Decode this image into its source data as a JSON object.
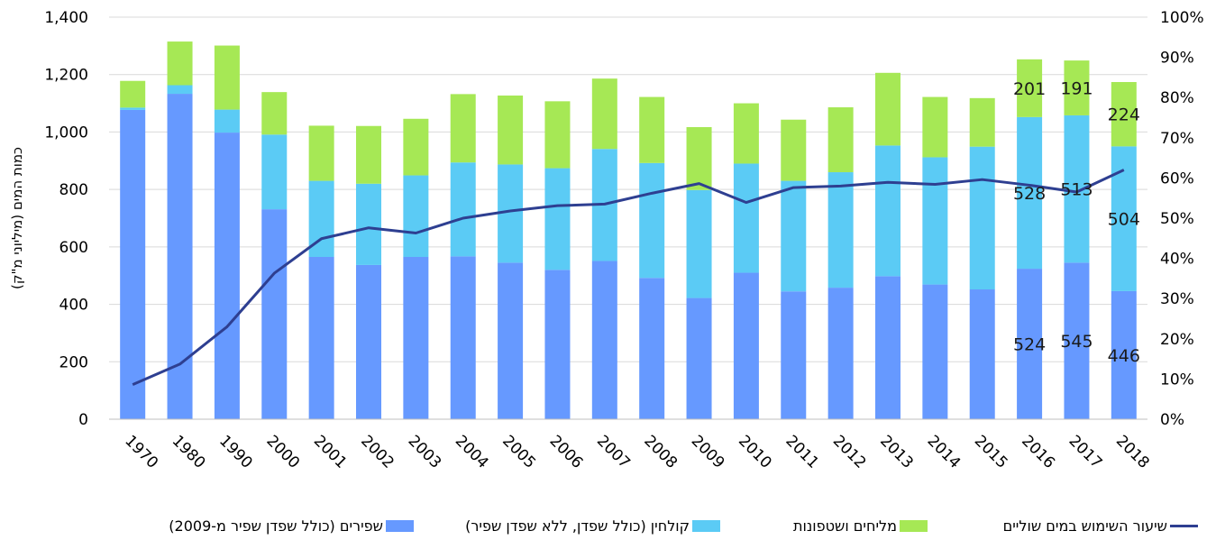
{
  "chart_data": {
    "type": "bar",
    "stacked": true,
    "categories": [
      "1970",
      "1980",
      "1990",
      "2000",
      "2001",
      "2002",
      "2003",
      "2004",
      "2005",
      "2006",
      "2007",
      "2008",
      "2009",
      "2010",
      "2011",
      "2012",
      "2013",
      "2014",
      "2015",
      "2016",
      "2017",
      "2018"
    ],
    "series": [
      {
        "name": "שפירים (כולל שפדן שפיר מ-2009)",
        "color": "#6699ff",
        "values": [
          1077,
          1133,
          998,
          731,
          565,
          537,
          565,
          567,
          545,
          520,
          551,
          492,
          422,
          510,
          445,
          458,
          498,
          469,
          452,
          524,
          545,
          446
        ]
      },
      {
        "name": "קולחין (כולל שפדן, ללא שפדן שפיר)",
        "color": "#5bcbf5",
        "values": [
          8,
          30,
          80,
          260,
          265,
          283,
          284,
          327,
          342,
          354,
          390,
          400,
          376,
          380,
          385,
          402,
          455,
          443,
          497,
          528,
          513,
          504
        ]
      },
      {
        "name": "מליחים ושטפונות",
        "color": "#a6e855",
        "values": [
          93,
          152,
          223,
          148,
          192,
          201,
          197,
          238,
          240,
          233,
          245,
          230,
          219,
          210,
          213,
          226,
          253,
          210,
          169,
          201,
          191,
          224
        ]
      }
    ],
    "line_series": {
      "name": "שיעור השימוש במים שוליים",
      "color": "#2e3f91",
      "axis": "right",
      "values": [
        8.6,
        13.7,
        23.0,
        36.3,
        44.9,
        47.6,
        46.3,
        50.0,
        51.8,
        53.1,
        53.5,
        56.2,
        58.6,
        53.9,
        57.6,
        58.0,
        58.9,
        58.4,
        59.6,
        58.2,
        56.5,
        62.0
      ]
    },
    "data_labels": {
      "categories": [
        "2016",
        "2017",
        "2018"
      ],
      "series1": [
        "524",
        "545",
        "446"
      ],
      "series2": [
        "528",
        "513",
        "504"
      ],
      "series3": [
        "201",
        "191",
        "224"
      ]
    },
    "ylabel": "כמות המים (מיליוני מ\"ק)",
    "ylim": [
      0,
      1400
    ],
    "y_ticks": [
      "0",
      "200",
      "400",
      "600",
      "800",
      "1,000",
      "1,200",
      "1,400"
    ],
    "y2lim": [
      0,
      100
    ],
    "y2_ticks": [
      "0%",
      "10%",
      "20%",
      "30%",
      "40%",
      "50%",
      "60%",
      "70%",
      "80%",
      "90%",
      "100%"
    ],
    "grid": true,
    "legend_position": "bottom"
  }
}
